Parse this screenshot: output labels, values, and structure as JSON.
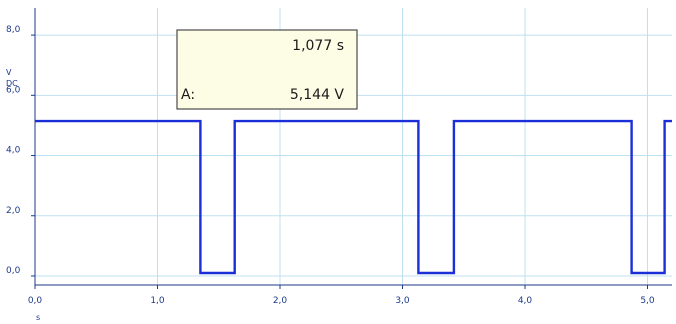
{
  "chart_data": {
    "type": "line",
    "title": "",
    "xlabel": "",
    "ylabel": "",
    "x_unit": "s",
    "y_unit_lines": [
      "V",
      "DC"
    ],
    "xlim": [
      0.0,
      5.2
    ],
    "ylim": [
      -0.3,
      8.9
    ],
    "grid": true,
    "x_ticks": [
      0.0,
      1.0,
      2.0,
      3.0,
      4.0,
      5.0
    ],
    "x_tick_labels": [
      "0,0",
      "1,0",
      "2,0",
      "3,0",
      "4,0",
      "5,0"
    ],
    "y_ticks": [
      0.0,
      2.0,
      4.0,
      6.0,
      8.0
    ],
    "y_tick_labels": [
      "0,0",
      "2,0",
      "4,0",
      "6,0",
      "8,0"
    ],
    "series": [
      {
        "color": "#1a2fd8",
        "x": [
          0.0,
          1.35,
          1.35,
          1.63,
          1.63,
          3.13,
          3.13,
          3.42,
          3.42,
          4.87,
          4.87,
          5.14,
          5.14,
          5.2
        ],
        "y": [
          5.144,
          5.144,
          0.1,
          0.1,
          5.144,
          5.144,
          0.1,
          0.1,
          5.144,
          5.144,
          0.1,
          0.1,
          5.144,
          5.144
        ]
      }
    ],
    "cursor_readout": {
      "time": "1,077 s",
      "channel": "A:",
      "value": "5,144 V"
    }
  },
  "colors": {
    "grid": "#bfe0ee",
    "axis": "#1d3a8a",
    "trace": "#1a2fd8"
  }
}
